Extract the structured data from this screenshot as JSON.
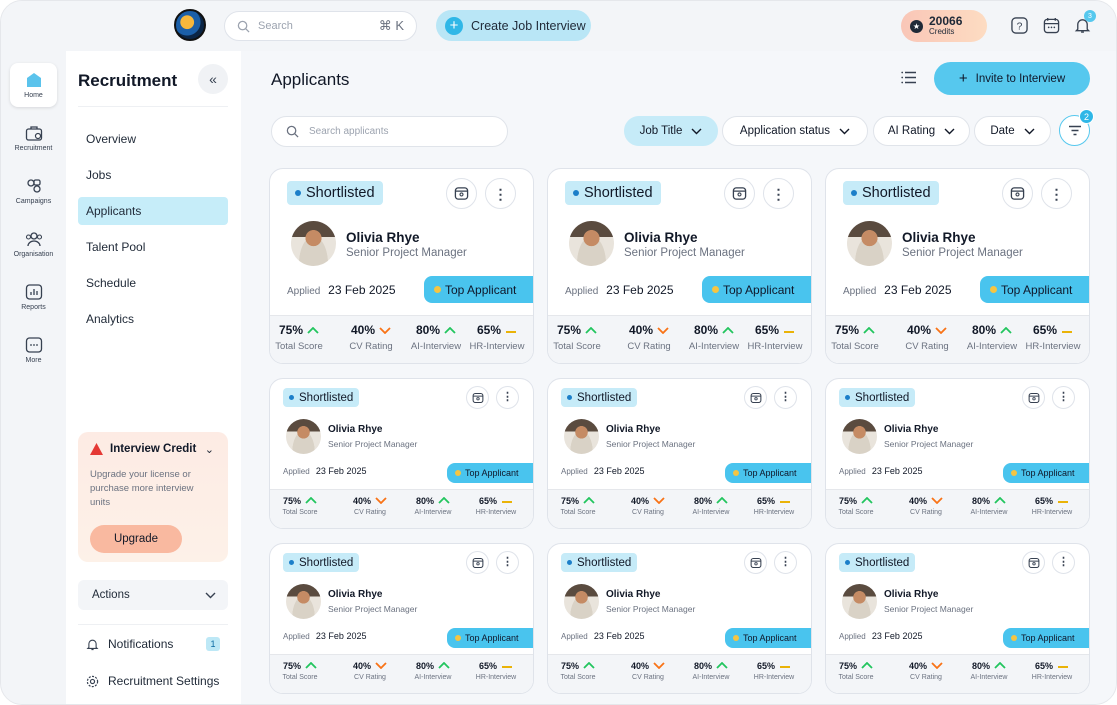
{
  "topbar": {
    "search_placeholder": "Search",
    "search_shortcut": "⌘ K",
    "create_button": "Create Job Interview",
    "credits_value": "20066",
    "credits_label": "Credits",
    "notification_count": "3"
  },
  "rail": [
    {
      "label": "Home",
      "icon": "home-icon"
    },
    {
      "label": "Recruitment",
      "icon": "briefcase-icon"
    },
    {
      "label": "Campaigns",
      "icon": "campaign-icon"
    },
    {
      "label": "Organisation",
      "icon": "people-icon"
    },
    {
      "label": "Reports",
      "icon": "chart-icon"
    },
    {
      "label": "More",
      "icon": "more-icon"
    }
  ],
  "sidebar": {
    "title": "Recruitment",
    "items": [
      "Overview",
      "Jobs",
      "Applicants",
      "Talent Pool",
      "Schedule",
      "Analytics"
    ],
    "active": "Applicants",
    "credit_title": "Interview Credit",
    "credit_text": "Upgrade your license or purchase more interview units",
    "upgrade": "Upgrade",
    "actions": "Actions",
    "notifications": "Notifications",
    "notifications_count": "1",
    "settings": "Recruitment Settings"
  },
  "main": {
    "title": "Applicants",
    "invite": "Invite to Interview",
    "search_placeholder": "Search applicants",
    "filters": [
      "Job Title",
      "Application status",
      "AI Rating",
      "Date"
    ],
    "filter_count": "2"
  },
  "card": {
    "status": "Shortlisted",
    "name": "Olivia Rhye",
    "role": "Senior Project Manager",
    "applied_label": "Applied",
    "applied_date": "23 Feb 2025",
    "badge": "Top Applicant",
    "metrics": [
      {
        "value": "75%",
        "label": "Total Score",
        "trend": "up"
      },
      {
        "value": "40%",
        "label": "CV Rating",
        "trend": "down"
      },
      {
        "value": "80%",
        "label": "AI-Interview",
        "trend": "up"
      },
      {
        "value": "65%",
        "label": "HR-Interview",
        "trend": "flat"
      }
    ]
  },
  "colors": {
    "accent": "#49c4ee",
    "active_nav": "#c6edf9",
    "tag": "#c6ebf8"
  }
}
